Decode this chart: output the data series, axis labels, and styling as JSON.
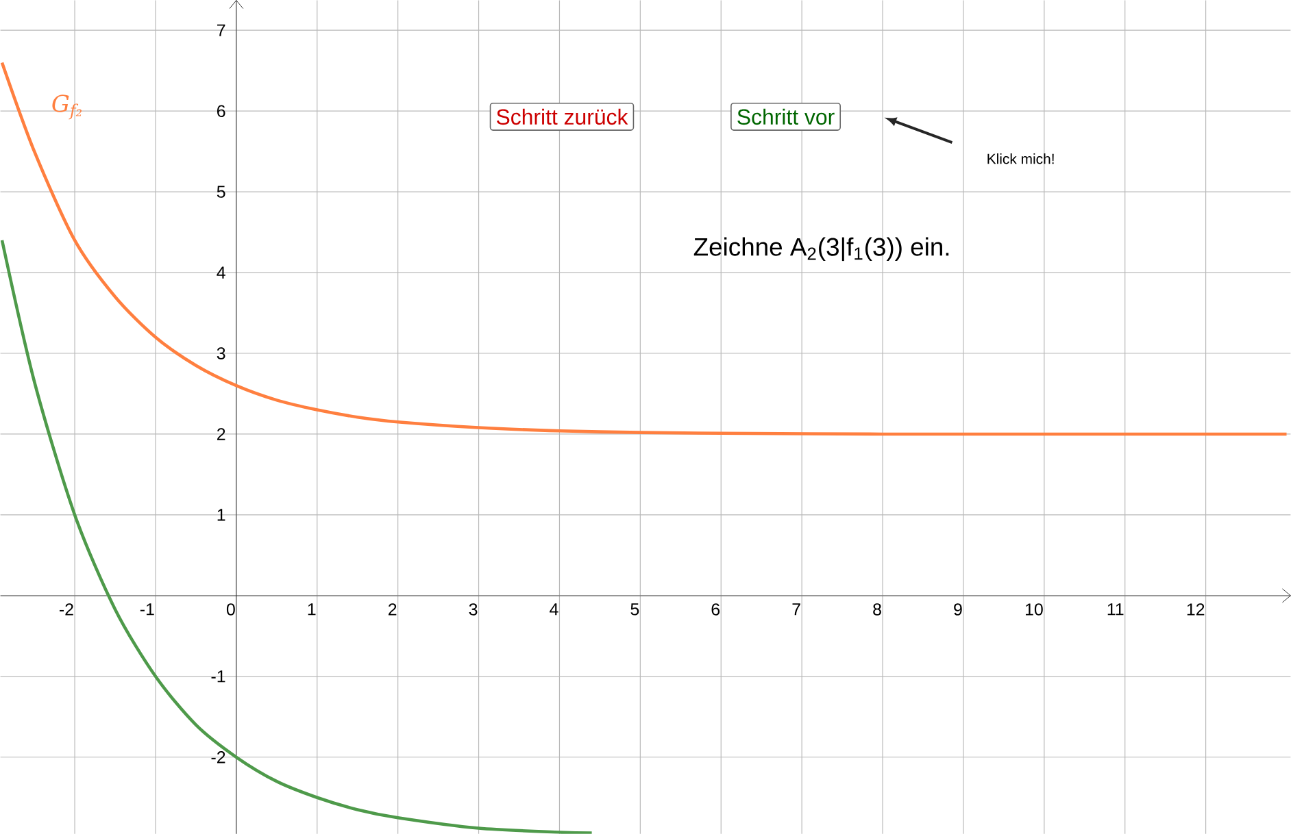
{
  "chart_data": {
    "type": "line",
    "xlim": [
      -2.92,
      13.05
    ],
    "ylim": [
      -2.95,
      7.37
    ],
    "xticks": [
      -2,
      -1,
      0,
      1,
      2,
      3,
      4,
      5,
      6,
      7,
      8,
      9,
      10,
      11,
      12
    ],
    "yticks": [
      -2,
      -1,
      {
        "value": 0,
        "label": null
      },
      1,
      2,
      3,
      4,
      5,
      6,
      7
    ],
    "grid": true,
    "marker": "none",
    "line_style": "solid",
    "series": [
      {
        "name": "G$_{f₂}$",
        "color": "#ff7f3f",
        "x": [
          -2.9,
          -2.5,
          -2,
          -1.5,
          -1,
          -0.5,
          0,
          0.5,
          1,
          1.5,
          2,
          3,
          4,
          5,
          6,
          8,
          10,
          13
        ],
        "values": [
          6.6,
          5.5,
          4.4,
          3.7,
          3.2,
          2.85,
          2.6,
          2.42,
          2.3,
          2.21,
          2.15,
          2.08,
          2.04,
          2.02,
          2.01,
          2.0,
          2.0,
          2.0
        ]
      },
      {
        "color": "#4e9a4a",
        "x": [
          -2.9,
          -2.5,
          -2,
          -1.5,
          -1,
          -0.5,
          0,
          0.5,
          1,
          1.5,
          2,
          3,
          4,
          4.4
        ],
        "values": [
          4.4,
          2.65,
          1.0,
          -0.17,
          -1.0,
          -1.6,
          -2.0,
          -2.3,
          -2.5,
          -2.65,
          -2.75,
          -2.88,
          -2.93,
          -2.94
        ]
      }
    ],
    "annotations": [
      "Schritt zurück",
      "Schritt vor",
      "Klick mich!",
      "Zeichne A$_{2}$(3|f$_{1}$(3)) ein."
    ]
  }
}
